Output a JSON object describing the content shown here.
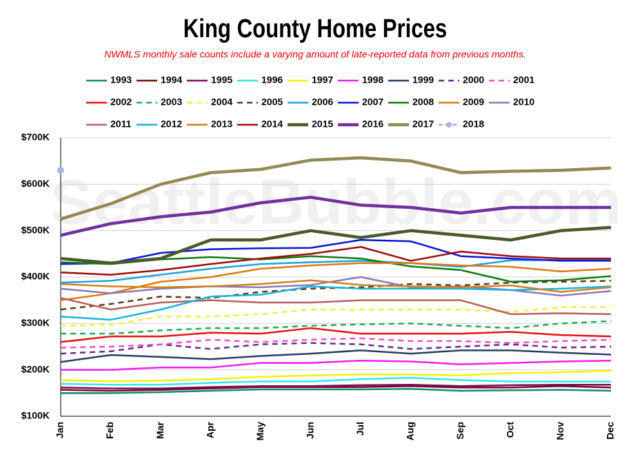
{
  "chart_data": {
    "type": "line",
    "title": "King County Home Prices",
    "subtitle": "NWMLS monthly sale counts include a varying amount of late-reported  data from previous months.",
    "watermark": "SeattleBubble.com",
    "categories": [
      "Jan",
      "Feb",
      "Mar",
      "Apr",
      "May",
      "Jun",
      "Jul",
      "Aug",
      "Sep",
      "Oct",
      "Nov",
      "Dec"
    ],
    "ylim": [
      100000,
      700000
    ],
    "yticks": [
      {
        "value": 100000,
        "label": "$100K"
      },
      {
        "value": 200000,
        "label": "$200K"
      },
      {
        "value": 300000,
        "label": "$300K"
      },
      {
        "value": 400000,
        "label": "$400K"
      },
      {
        "value": 500000,
        "label": "$500K"
      },
      {
        "value": 600000,
        "label": "$600K"
      },
      {
        "value": 700000,
        "label": "$700K"
      }
    ],
    "grid": true,
    "series": [
      {
        "name": "1993",
        "color": "#0e8a7a",
        "style": "solid",
        "values": [
          150000,
          150000,
          152000,
          155000,
          158000,
          158000,
          158000,
          159000,
          155000,
          156000,
          157000,
          155000
        ]
      },
      {
        "name": "1994",
        "color": "#7b0b0b",
        "style": "solid",
        "values": [
          157000,
          155000,
          157000,
          160000,
          163000,
          163000,
          163000,
          165000,
          162000,
          162000,
          165000,
          162000
        ]
      },
      {
        "name": "1995",
        "color": "#7a0a6e",
        "style": "solid",
        "values": [
          162000,
          160000,
          160000,
          163000,
          165000,
          165000,
          167000,
          168000,
          165000,
          167000,
          168000,
          168000
        ]
      },
      {
        "name": "1996",
        "color": "#33e6f0",
        "style": "solid",
        "values": [
          170000,
          168000,
          168000,
          172000,
          175000,
          175000,
          180000,
          183000,
          178000,
          175000,
          175000,
          175000
        ]
      },
      {
        "name": "1997",
        "color": "#f2f20a",
        "style": "solid",
        "values": [
          178000,
          175000,
          177000,
          180000,
          185000,
          188000,
          190000,
          190000,
          188000,
          193000,
          195000,
          198000
        ]
      },
      {
        "name": "1998",
        "color": "#f01ef0",
        "style": "solid",
        "values": [
          200000,
          200000,
          205000,
          205000,
          215000,
          215000,
          220000,
          218000,
          212000,
          215000,
          218000,
          220000
        ]
      },
      {
        "name": "1999",
        "color": "#243f66",
        "style": "solid",
        "values": [
          217000,
          232000,
          228000,
          223000,
          230000,
          235000,
          242000,
          235000,
          242000,
          242000,
          237000,
          233000
        ]
      },
      {
        "name": "2000",
        "color": "#6a2a8a",
        "style": "dashed",
        "values": [
          235000,
          240000,
          255000,
          245000,
          255000,
          258000,
          255000,
          245000,
          250000,
          255000,
          248000,
          250000
        ]
      },
      {
        "name": "2001",
        "color": "#f050c8",
        "style": "dashed",
        "values": [
          248000,
          250000,
          255000,
          265000,
          260000,
          265000,
          268000,
          262000,
          262000,
          258000,
          262000,
          265000
        ]
      },
      {
        "name": "2002",
        "color": "#e81010",
        "style": "solid",
        "values": [
          260000,
          272000,
          272000,
          280000,
          278000,
          290000,
          278000,
          278000,
          278000,
          282000,
          275000,
          272000
        ]
      },
      {
        "name": "2003",
        "color": "#22aa55",
        "style": "dashed",
        "values": [
          278000,
          278000,
          285000,
          290000,
          290000,
          295000,
          298000,
          300000,
          295000,
          290000,
          300000,
          305000
        ]
      },
      {
        "name": "2004",
        "color": "#f0f040",
        "style": "dashed",
        "values": [
          295000,
          297000,
          315000,
          315000,
          320000,
          330000,
          330000,
          330000,
          330000,
          325000,
          335000,
          335000
        ]
      },
      {
        "name": "2005",
        "color": "#5a3a1a",
        "style": "dashed",
        "values": [
          330000,
          342000,
          358000,
          355000,
          368000,
          375000,
          378000,
          385000,
          382000,
          388000,
          390000,
          392000
        ]
      },
      {
        "name": "2006",
        "color": "#1ea0e0",
        "style": "solid",
        "values": [
          388000,
          392000,
          405000,
          418000,
          428000,
          432000,
          435000,
          430000,
          422000,
          436000,
          437000,
          438000
        ]
      },
      {
        "name": "2007",
        "color": "#0a14d8",
        "style": "solid",
        "values": [
          428000,
          430000,
          452000,
          460000,
          462000,
          463000,
          480000,
          477000,
          445000,
          440000,
          435000,
          435000
        ]
      },
      {
        "name": "2008",
        "color": "#107a10",
        "style": "solid",
        "values": [
          432000,
          428000,
          438000,
          443000,
          438000,
          445000,
          440000,
          423000,
          415000,
          390000,
          393000,
          402000
        ]
      },
      {
        "name": "2009",
        "color": "#e07810",
        "style": "solid",
        "values": [
          350000,
          365000,
          390000,
          400000,
          418000,
          425000,
          430000,
          430000,
          425000,
          422000,
          412000,
          418000
        ]
      },
      {
        "name": "2010",
        "color": "#8a78b8",
        "style": "solid",
        "values": [
          375000,
          365000,
          375000,
          380000,
          378000,
          383000,
          400000,
          378000,
          380000,
          372000,
          360000,
          370000
        ]
      },
      {
        "name": "2011",
        "color": "#b8605a",
        "style": "solid",
        "values": [
          355000,
          330000,
          345000,
          350000,
          345000,
          345000,
          350000,
          350000,
          350000,
          320000,
          322000,
          320000
        ]
      },
      {
        "name": "2012",
        "color": "#18b4dc",
        "style": "solid",
        "values": [
          315000,
          308000,
          330000,
          358000,
          362000,
          380000,
          375000,
          375000,
          375000,
          372000,
          375000,
          380000
        ]
      },
      {
        "name": "2013",
        "color": "#d0801a",
        "style": "solid",
        "values": [
          385000,
          380000,
          378000,
          380000,
          385000,
          393000,
          383000,
          380000,
          378000,
          382000,
          368000,
          378000
        ]
      },
      {
        "name": "2014",
        "color": "#a00a0a",
        "style": "solid",
        "values": [
          410000,
          405000,
          415000,
          428000,
          440000,
          450000,
          465000,
          435000,
          455000,
          445000,
          440000,
          440000
        ]
      },
      {
        "name": "2015",
        "color": "#4a5a2a",
        "style": "thick",
        "values": [
          440000,
          430000,
          440000,
          480000,
          480000,
          500000,
          485000,
          500000,
          490000,
          480000,
          500000,
          507000
        ]
      },
      {
        "name": "2016",
        "color": "#7030a0",
        "style": "thick",
        "values": [
          490000,
          515000,
          530000,
          540000,
          560000,
          572000,
          555000,
          550000,
          538000,
          550000,
          550000,
          550000
        ]
      },
      {
        "name": "2017",
        "color": "#948a54",
        "style": "thick",
        "values": [
          525000,
          558000,
          600000,
          625000,
          632000,
          652000,
          657000,
          650000,
          625000,
          628000,
          630000,
          635000
        ]
      },
      {
        "name": "2018",
        "color": "#a8b8d8",
        "style": "dotted",
        "values": [
          630000,
          null,
          null,
          null,
          null,
          null,
          null,
          null,
          null,
          null,
          null,
          null
        ]
      }
    ]
  }
}
